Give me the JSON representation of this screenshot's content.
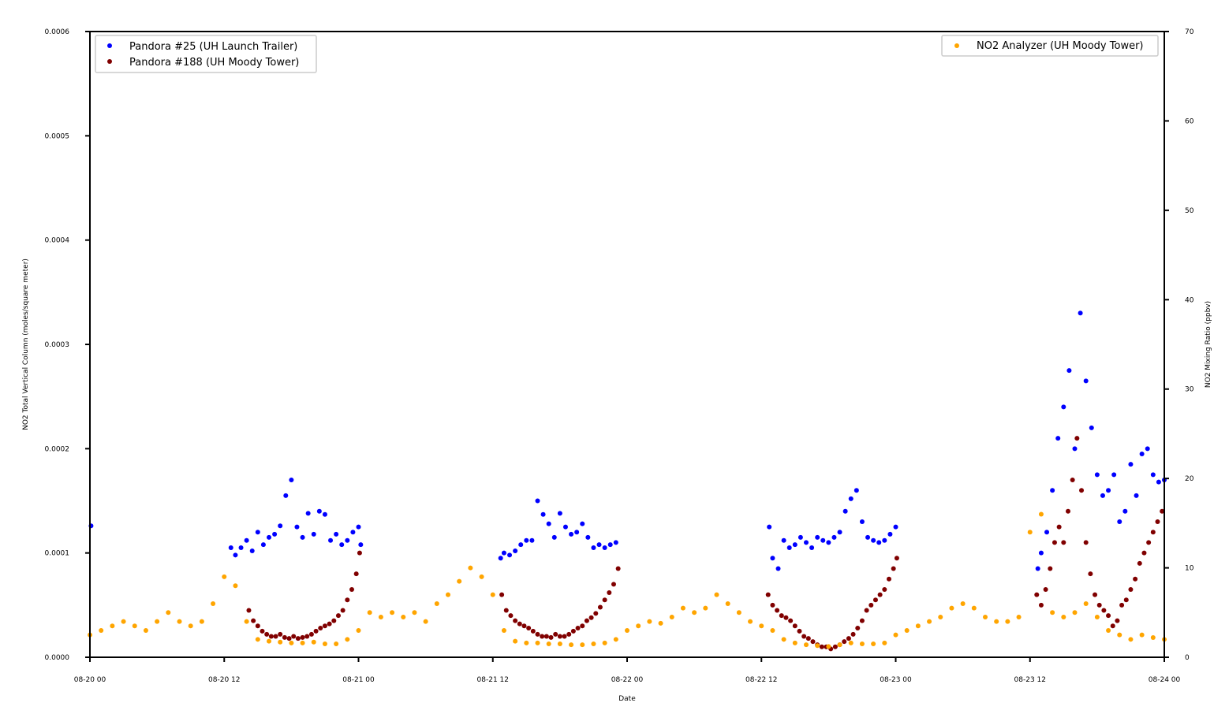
{
  "chart_data": {
    "type": "scatter",
    "xlabel": "Date",
    "ylabel_left": "NO2 Total Vertical Column (moles/square meter)",
    "ylabel_right": "NO2 Mixing Ratio (ppbv)",
    "xlim_hours": [
      0,
      96
    ],
    "x_ticks": [
      {
        "hours": 0,
        "label": "08-20 00"
      },
      {
        "hours": 12,
        "label": "08-20 12"
      },
      {
        "hours": 24,
        "label": "08-21 00"
      },
      {
        "hours": 36,
        "label": "08-21 12"
      },
      {
        "hours": 48,
        "label": "08-22 00"
      },
      {
        "hours": 60,
        "label": "08-22 12"
      },
      {
        "hours": 72,
        "label": "08-23 00"
      },
      {
        "hours": 84,
        "label": "08-23 12"
      },
      {
        "hours": 96,
        "label": "08-24 00"
      }
    ],
    "ylim_left": [
      0,
      0.0006
    ],
    "y_ticks_left": [
      "0.0000",
      "0.0001",
      "0.0002",
      "0.0003",
      "0.0004",
      "0.0005",
      "0.0006"
    ],
    "ylim_right": [
      0,
      70
    ],
    "y_ticks_right": [
      "0",
      "10",
      "20",
      "30",
      "40",
      "50",
      "60",
      "70"
    ],
    "legend_left": [
      "Pandora #25 (UH Launch Trailer)",
      "Pandora #188 (UH Moody Tower)"
    ],
    "legend_right": [
      "NO2 Analyzer (UH Moody Tower)"
    ],
    "series": [
      {
        "name": "Pandora #25 (UH Launch Trailer)",
        "axis": "left",
        "color": "#0000ff",
        "x": [
          0.1,
          12.6,
          13.0,
          13.5,
          14.0,
          14.5,
          15.0,
          15.5,
          16.0,
          16.5,
          17.0,
          17.5,
          18.0,
          18.5,
          19.0,
          19.5,
          20.0,
          20.5,
          21.0,
          21.5,
          22.0,
          22.5,
          23.0,
          23.5,
          24.0,
          24.2,
          36.7,
          37.0,
          37.5,
          38.0,
          38.5,
          39.0,
          39.5,
          40.0,
          40.5,
          41.0,
          41.5,
          42.0,
          42.5,
          43.0,
          43.5,
          44.0,
          44.5,
          45.0,
          45.5,
          46.0,
          46.5,
          47.0,
          60.7,
          61.0,
          61.5,
          62.0,
          62.5,
          63.0,
          63.5,
          64.0,
          64.5,
          65.0,
          65.5,
          66.0,
          66.5,
          67.0,
          67.5,
          68.0,
          68.5,
          69.0,
          69.5,
          70.0,
          70.5,
          71.0,
          71.5,
          72.0,
          84.7,
          85.0,
          85.5,
          86.0,
          86.5,
          87.0,
          87.5,
          88.0,
          88.5,
          89.0,
          89.5,
          90.0,
          90.5,
          91.0,
          91.5,
          92.0,
          92.5,
          93.0,
          93.5,
          94.0,
          94.5,
          95.0,
          95.5,
          96.0
        ],
        "y": [
          0.000126,
          0.000105,
          9.8e-05,
          0.000105,
          0.000112,
          0.000102,
          0.00012,
          0.000108,
          0.000115,
          0.000118,
          0.000126,
          0.000155,
          0.00017,
          0.000125,
          0.000115,
          0.000138,
          0.000118,
          0.00014,
          0.000137,
          0.000112,
          0.000118,
          0.000108,
          0.000112,
          0.00012,
          0.000125,
          0.000108,
          9.5e-05,
          0.0001,
          9.8e-05,
          0.000102,
          0.000108,
          0.000112,
          0.000112,
          0.00015,
          0.000137,
          0.000128,
          0.000115,
          0.000138,
          0.000125,
          0.000118,
          0.00012,
          0.000128,
          0.000115,
          0.000105,
          0.000108,
          0.000105,
          0.000108,
          0.00011,
          0.000125,
          9.5e-05,
          8.5e-05,
          0.000112,
          0.000105,
          0.000108,
          0.000115,
          0.00011,
          0.000105,
          0.000115,
          0.000112,
          0.00011,
          0.000115,
          0.00012,
          0.00014,
          0.000152,
          0.00016,
          0.00013,
          0.000115,
          0.000112,
          0.00011,
          0.000112,
          0.000118,
          0.000125,
          8.5e-05,
          0.0001,
          0.00012,
          0.00016,
          0.00021,
          0.00024,
          0.000275,
          0.0002,
          0.00033,
          0.000265,
          0.00022,
          0.000175,
          0.000155,
          0.00016,
          0.000175,
          0.00013,
          0.00014,
          0.000185,
          0.000155,
          0.000195,
          0.0002,
          0.000175,
          0.000168,
          0.00017
        ]
      },
      {
        "name": "Pandora #188 (UH Moody Tower)",
        "axis": "left",
        "color": "#800000",
        "x": [
          14.2,
          14.6,
          15.0,
          15.4,
          15.8,
          16.2,
          16.6,
          17.0,
          17.4,
          17.8,
          18.2,
          18.6,
          19.0,
          19.4,
          19.8,
          20.2,
          20.6,
          21.0,
          21.4,
          21.8,
          22.2,
          22.6,
          23.0,
          23.4,
          23.8,
          24.1,
          36.8,
          37.2,
          37.6,
          38.0,
          38.4,
          38.8,
          39.2,
          39.6,
          40.0,
          40.4,
          40.8,
          41.2,
          41.6,
          42.0,
          42.4,
          42.8,
          43.2,
          43.6,
          44.0,
          44.4,
          44.8,
          45.2,
          45.6,
          46.0,
          46.4,
          46.8,
          47.2,
          60.6,
          61.0,
          61.4,
          61.8,
          62.2,
          62.6,
          63.0,
          63.4,
          63.8,
          64.2,
          64.6,
          65.0,
          65.4,
          65.8,
          66.2,
          66.6,
          67.0,
          67.4,
          67.8,
          68.2,
          68.6,
          69.0,
          69.4,
          69.8,
          70.2,
          70.6,
          71.0,
          71.4,
          71.8,
          72.1,
          84.6,
          85.0,
          85.4,
          85.8,
          86.2,
          86.6,
          87.0,
          87.4,
          87.8,
          88.2,
          88.6,
          89.0,
          89.4,
          89.8,
          90.2,
          90.6,
          91.0,
          91.4,
          91.8,
          92.2,
          92.6,
          93.0,
          93.4,
          93.8,
          94.2,
          94.6,
          95.0,
          95.4,
          95.8
        ],
        "y": [
          4.5e-05,
          3.5e-05,
          3e-05,
          2.5e-05,
          2.2e-05,
          2e-05,
          2e-05,
          2.2e-05,
          1.9e-05,
          1.8e-05,
          2e-05,
          1.8e-05,
          1.9e-05,
          2e-05,
          2.2e-05,
          2.5e-05,
          2.8e-05,
          3e-05,
          3.2e-05,
          3.5e-05,
          4e-05,
          4.5e-05,
          5.5e-05,
          6.5e-05,
          8e-05,
          0.0001,
          6e-05,
          4.5e-05,
          4e-05,
          3.5e-05,
          3.2e-05,
          3e-05,
          2.8e-05,
          2.5e-05,
          2.2e-05,
          2e-05,
          2e-05,
          1.9e-05,
          2.2e-05,
          2e-05,
          2e-05,
          2.2e-05,
          2.5e-05,
          2.8e-05,
          3e-05,
          3.5e-05,
          3.8e-05,
          4.2e-05,
          4.8e-05,
          5.5e-05,
          6.2e-05,
          7e-05,
          8.5e-05,
          6e-05,
          5e-05,
          4.5e-05,
          4e-05,
          3.8e-05,
          3.5e-05,
          3e-05,
          2.5e-05,
          2e-05,
          1.8e-05,
          1.5e-05,
          1.2e-05,
          1e-05,
          1e-05,
          8e-06,
          1e-05,
          1.2e-05,
          1.5e-05,
          1.8e-05,
          2.2e-05,
          2.8e-05,
          3.5e-05,
          4.5e-05,
          5e-05,
          5.5e-05,
          6e-05,
          6.5e-05,
          7.5e-05,
          8.5e-05,
          9.5e-05,
          6e-05,
          5e-05,
          6.5e-05,
          8.5e-05,
          0.00011,
          0.000125,
          0.00011,
          0.00014,
          0.00017,
          0.00021,
          0.00016,
          0.00011,
          8e-05,
          6e-05,
          5e-05,
          4.5e-05,
          4e-05,
          3e-05,
          3.5e-05,
          5e-05,
          5.5e-05,
          6.5e-05,
          7.5e-05,
          9e-05,
          0.0001,
          0.00011,
          0.00012,
          0.00013,
          0.00014
        ]
      },
      {
        "name": "NO2 Analyzer (UH Moody Tower)",
        "axis": "right",
        "color": "#ffa500",
        "x": [
          0,
          1,
          2,
          3,
          4,
          5,
          6,
          7,
          8,
          9,
          10,
          11,
          12,
          13,
          14,
          15,
          16,
          17,
          18,
          19,
          20,
          21,
          22,
          23,
          24,
          25,
          26,
          27,
          28,
          29,
          30,
          31,
          32,
          33,
          34,
          35,
          36,
          37,
          38,
          39,
          40,
          41,
          42,
          43,
          44,
          45,
          46,
          47,
          48,
          49,
          50,
          51,
          52,
          53,
          54,
          55,
          56,
          57,
          58,
          59,
          60,
          61,
          62,
          63,
          64,
          65,
          66,
          67,
          68,
          69,
          70,
          71,
          72,
          73,
          74,
          75,
          76,
          77,
          78,
          79,
          80,
          81,
          82,
          83,
          84,
          85,
          86,
          87,
          88,
          89,
          90,
          91,
          92,
          93,
          94,
          95,
          96
        ],
        "y": [
          2.5,
          3.0,
          3.5,
          4.0,
          3.5,
          3.0,
          4.0,
          5.0,
          4.0,
          3.5,
          4.0,
          6.0,
          9.0,
          8.0,
          4.0,
          2.0,
          1.8,
          1.7,
          1.6,
          1.6,
          1.7,
          1.5,
          1.5,
          2.0,
          3.0,
          5.0,
          4.5,
          5.0,
          4.5,
          5.0,
          4.0,
          6.0,
          7.0,
          8.5,
          10.0,
          9.0,
          7.0,
          3.0,
          1.8,
          1.6,
          1.6,
          1.5,
          1.5,
          1.4,
          1.4,
          1.5,
          1.6,
          2.0,
          3.0,
          3.5,
          4.0,
          3.8,
          4.5,
          5.5,
          5.0,
          5.5,
          7.0,
          6.0,
          5.0,
          4.0,
          3.5,
          3.0,
          2.0,
          1.6,
          1.4,
          1.3,
          1.2,
          1.4,
          1.6,
          1.5,
          1.5,
          1.6,
          2.5,
          3.0,
          3.5,
          4.0,
          4.5,
          5.5,
          6.0,
          5.5,
          4.5,
          4.0,
          4.0,
          4.5,
          14.0,
          16.0,
          5.0,
          4.5,
          5.0,
          6.0,
          4.5,
          3.0,
          2.5,
          2.0,
          2.5,
          2.2,
          2.0
        ]
      }
    ]
  }
}
